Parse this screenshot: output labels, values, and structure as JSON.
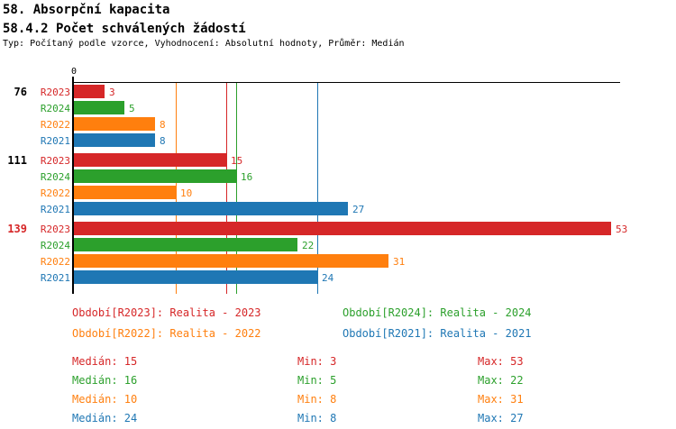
{
  "header": {
    "title1": "58. Absorpční kapacita",
    "title2": "58.4.2 Počet schválených žádostí",
    "subtitle": "Typ: Počítaný podle vzorce, Vyhodnocení: Absolutní hodnoty, Průměr: Medián"
  },
  "colors": {
    "axis": "#000000",
    "text": "#000000",
    "group_label_default": "#000000",
    "group_label_highlight": "#d62728"
  },
  "chart_data": {
    "type": "bar",
    "orientation": "horizontal",
    "axis_origin_label": "0",
    "xlim": [
      0,
      54
    ],
    "grid": false,
    "series": [
      {
        "id": "R2023",
        "label": "R2023",
        "color": "#d62728",
        "median": 15,
        "min": 3,
        "max": 53
      },
      {
        "id": "R2024",
        "label": "R2024",
        "color": "#2ca02c",
        "median": 16,
        "min": 5,
        "max": 22
      },
      {
        "id": "R2022",
        "label": "R2022",
        "color": "#ff7f0e",
        "median": 10,
        "min": 8,
        "max": 31
      },
      {
        "id": "R2021",
        "label": "R2021",
        "color": "#1f77b4",
        "median": 24,
        "min": 8,
        "max": 27
      }
    ],
    "groups": [
      {
        "label": "76",
        "highlight": false,
        "values": [
          3,
          5,
          8,
          8
        ]
      },
      {
        "label": "111",
        "highlight": false,
        "values": [
          15,
          16,
          10,
          27
        ]
      },
      {
        "label": "139",
        "highlight": true,
        "values": [
          53,
          22,
          31,
          24
        ]
      }
    ],
    "median_reference_lines": {
      "R2023": 15,
      "R2024": 16,
      "R2022": 10,
      "R2021": 24
    }
  },
  "legend": {
    "items": [
      {
        "series": "R2023",
        "label": "Období[R2023]: Realita - 2023"
      },
      {
        "series": "R2024",
        "label": "Období[R2024]: Realita - 2024"
      },
      {
        "series": "R2022",
        "label": "Období[R2022]: Realita - 2022"
      },
      {
        "series": "R2021",
        "label": "Období[R2021]: Realita - 2021"
      }
    ]
  },
  "stats": {
    "median_title": "Medián",
    "min_title": "Min",
    "max_title": "Max",
    "rows": [
      {
        "series": "R2023",
        "median": 15,
        "min": 3,
        "max": 53
      },
      {
        "series": "R2024",
        "median": 16,
        "min": 5,
        "max": 22
      },
      {
        "series": "R2022",
        "median": 10,
        "min": 8,
        "max": 31
      },
      {
        "series": "R2021",
        "median": 24,
        "min": 8,
        "max": 27
      }
    ]
  }
}
